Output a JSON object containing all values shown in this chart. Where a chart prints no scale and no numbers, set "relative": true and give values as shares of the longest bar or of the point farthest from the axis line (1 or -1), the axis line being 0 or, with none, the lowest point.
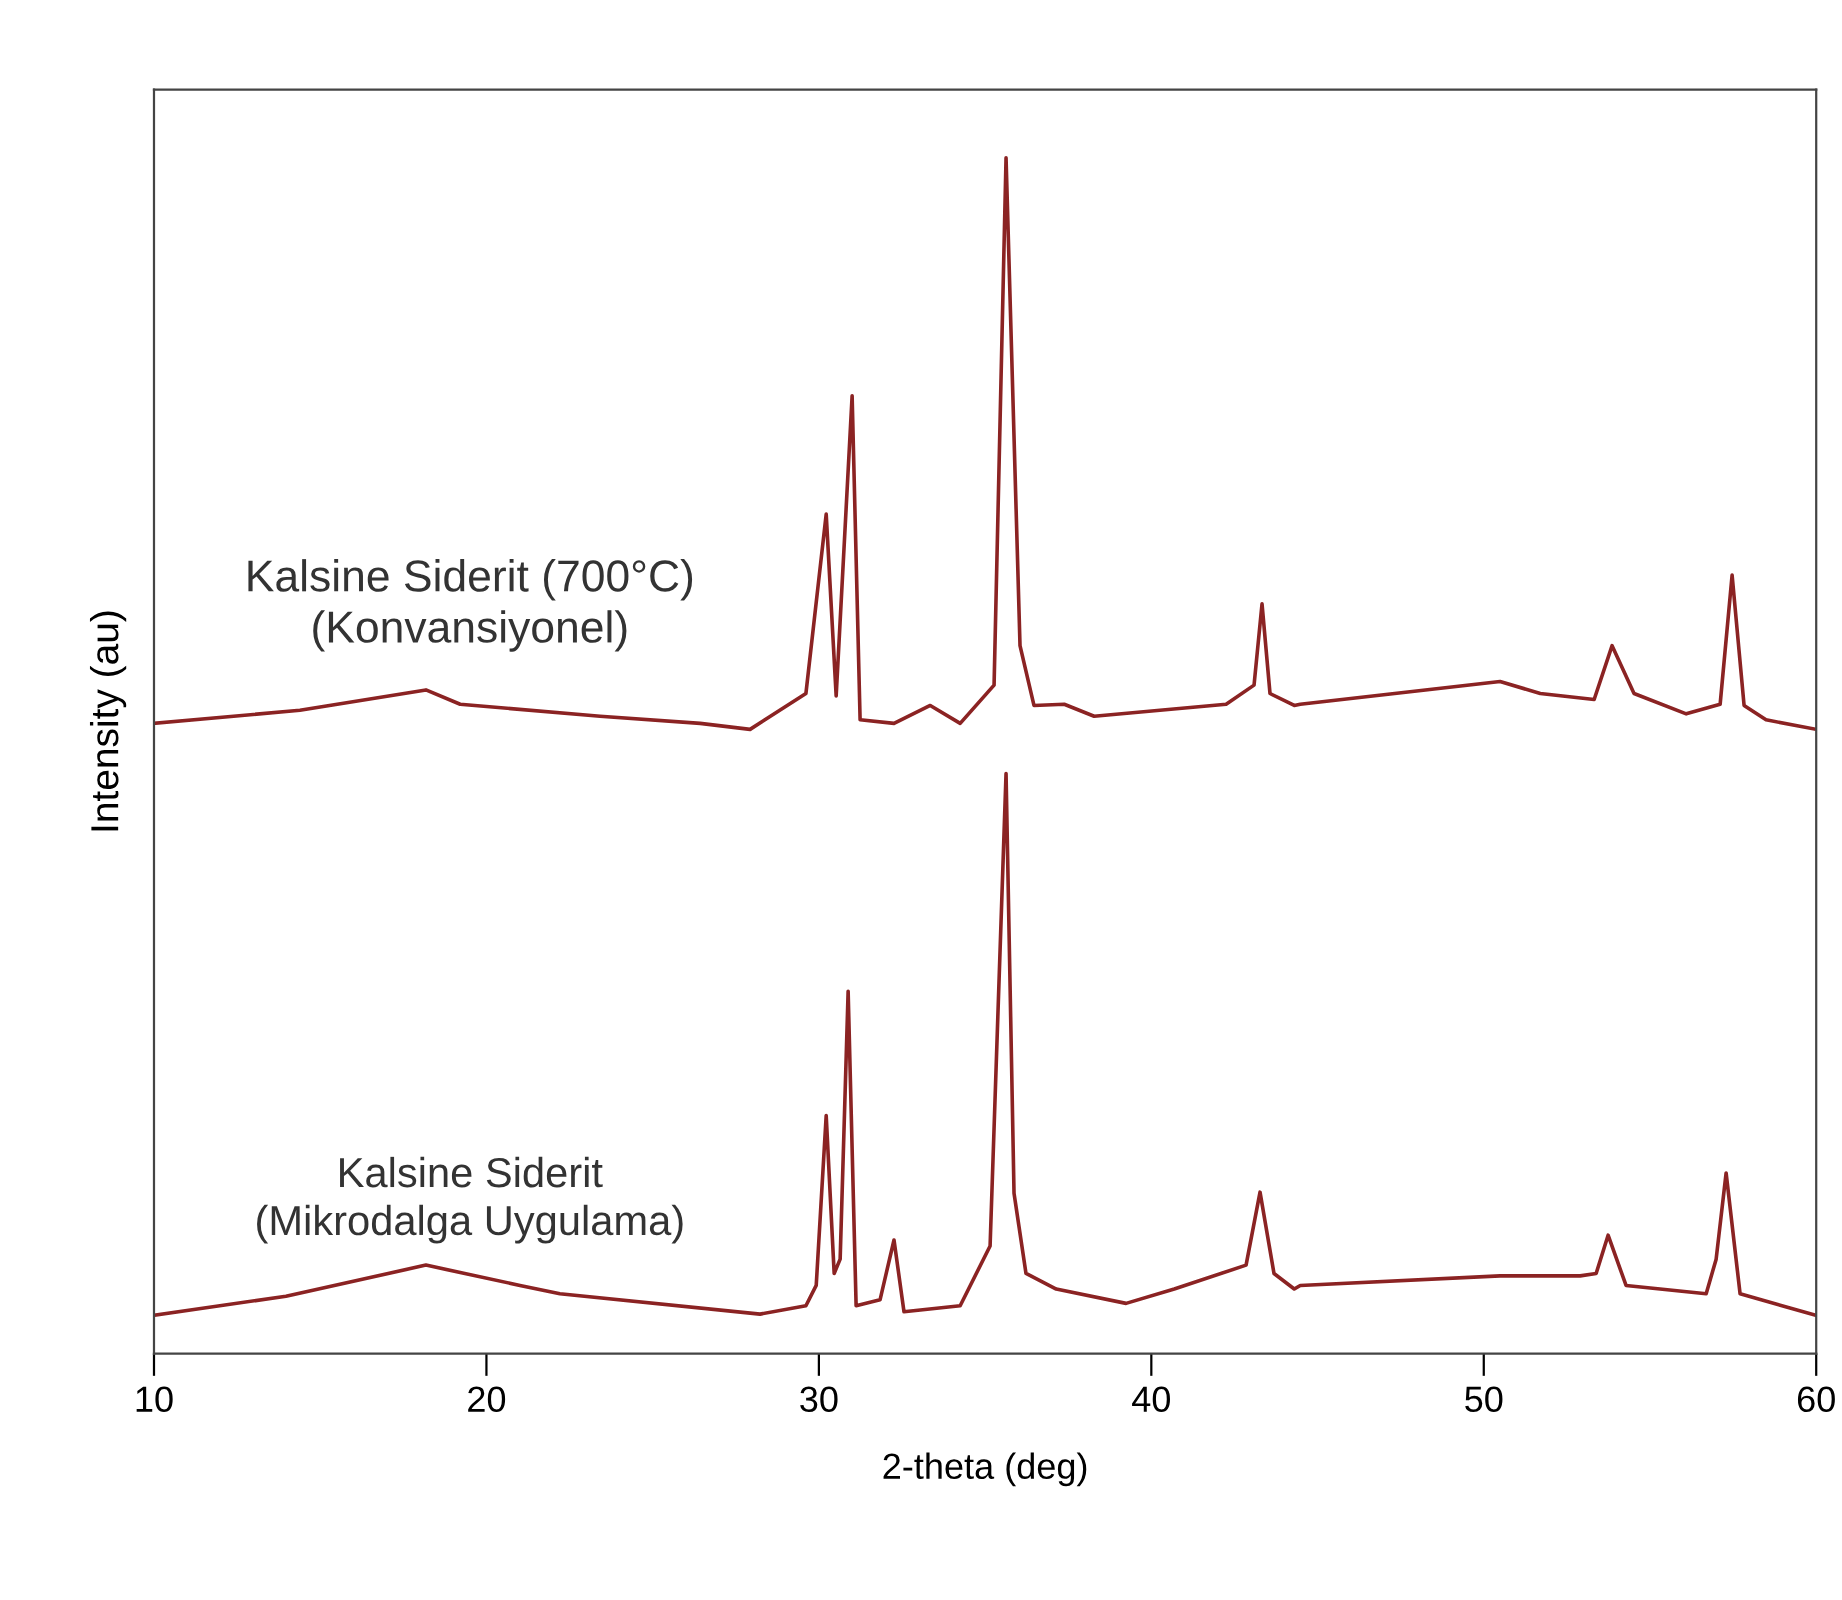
{
  "chart_data": {
    "type": "line",
    "xlabel": "2-theta (deg)",
    "ylabel": "Intensity (au)",
    "relative": true,
    "xlim": [
      10,
      60
    ],
    "xticks": [
      10,
      20,
      30,
      40,
      50,
      60
    ],
    "grid": false,
    "legend": false,
    "marker": "none",
    "line_style": "solid",
    "series": [
      {
        "name": "Kalsine Siderit (700°C)\n(Konvansiyonel)",
        "color": "#8b2323",
        "x": [
          10,
          14.39,
          18.18,
          19.21,
          23.42,
          26.43,
          27.93,
          29.61,
          30.22,
          30.52,
          31.0,
          31.24,
          32.26,
          33.35,
          34.25,
          35.27,
          35.63,
          36.05,
          36.47,
          37.38,
          38.28,
          40.26,
          42.25,
          43.09,
          43.33,
          43.57,
          44.3,
          44.48,
          50.49,
          51.7,
          53.32,
          53.86,
          54.52,
          56.09,
          57.11,
          57.47,
          57.83,
          58.49,
          60
        ],
        "values": [
          0.527,
          0.538,
          0.555,
          0.543,
          0.533,
          0.527,
          0.522,
          0.552,
          0.702,
          0.55,
          0.801,
          0.53,
          0.527,
          0.542,
          0.527,
          0.559,
          1.0,
          0.592,
          0.542,
          0.543,
          0.533,
          0.538,
          0.543,
          0.559,
          0.627,
          0.552,
          0.542,
          0.543,
          0.562,
          0.552,
          0.547,
          0.592,
          0.552,
          0.535,
          0.543,
          0.651,
          0.542,
          0.53,
          0.522
        ]
      },
      {
        "name": "Kalsine Siderit\n(Mikrodalga Uygulama)",
        "color": "#8b2323",
        "x": [
          10,
          13.97,
          18.18,
          21.01,
          22.21,
          28.23,
          29.61,
          29.92,
          30.22,
          30.46,
          30.64,
          30.88,
          31.12,
          31.84,
          32.26,
          32.56,
          34.25,
          35.15,
          35.63,
          35.87,
          36.23,
          37.14,
          39.24,
          40.69,
          42.85,
          43.27,
          43.69,
          44.3,
          44.48,
          50.49,
          52.9,
          53.38,
          53.74,
          54.28,
          56.69,
          56.99,
          57.29,
          57.71,
          60
        ],
        "values": [
          0.032,
          0.048,
          0.074,
          0.057,
          0.05,
          0.033,
          0.04,
          0.057,
          0.199,
          0.067,
          0.079,
          0.303,
          0.04,
          0.045,
          0.095,
          0.035,
          0.04,
          0.09,
          0.485,
          0.134,
          0.067,
          0.054,
          0.042,
          0.054,
          0.074,
          0.135,
          0.067,
          0.054,
          0.057,
          0.065,
          0.065,
          0.067,
          0.099,
          0.057,
          0.05,
          0.079,
          0.151,
          0.05,
          0.032
        ]
      }
    ]
  }
}
